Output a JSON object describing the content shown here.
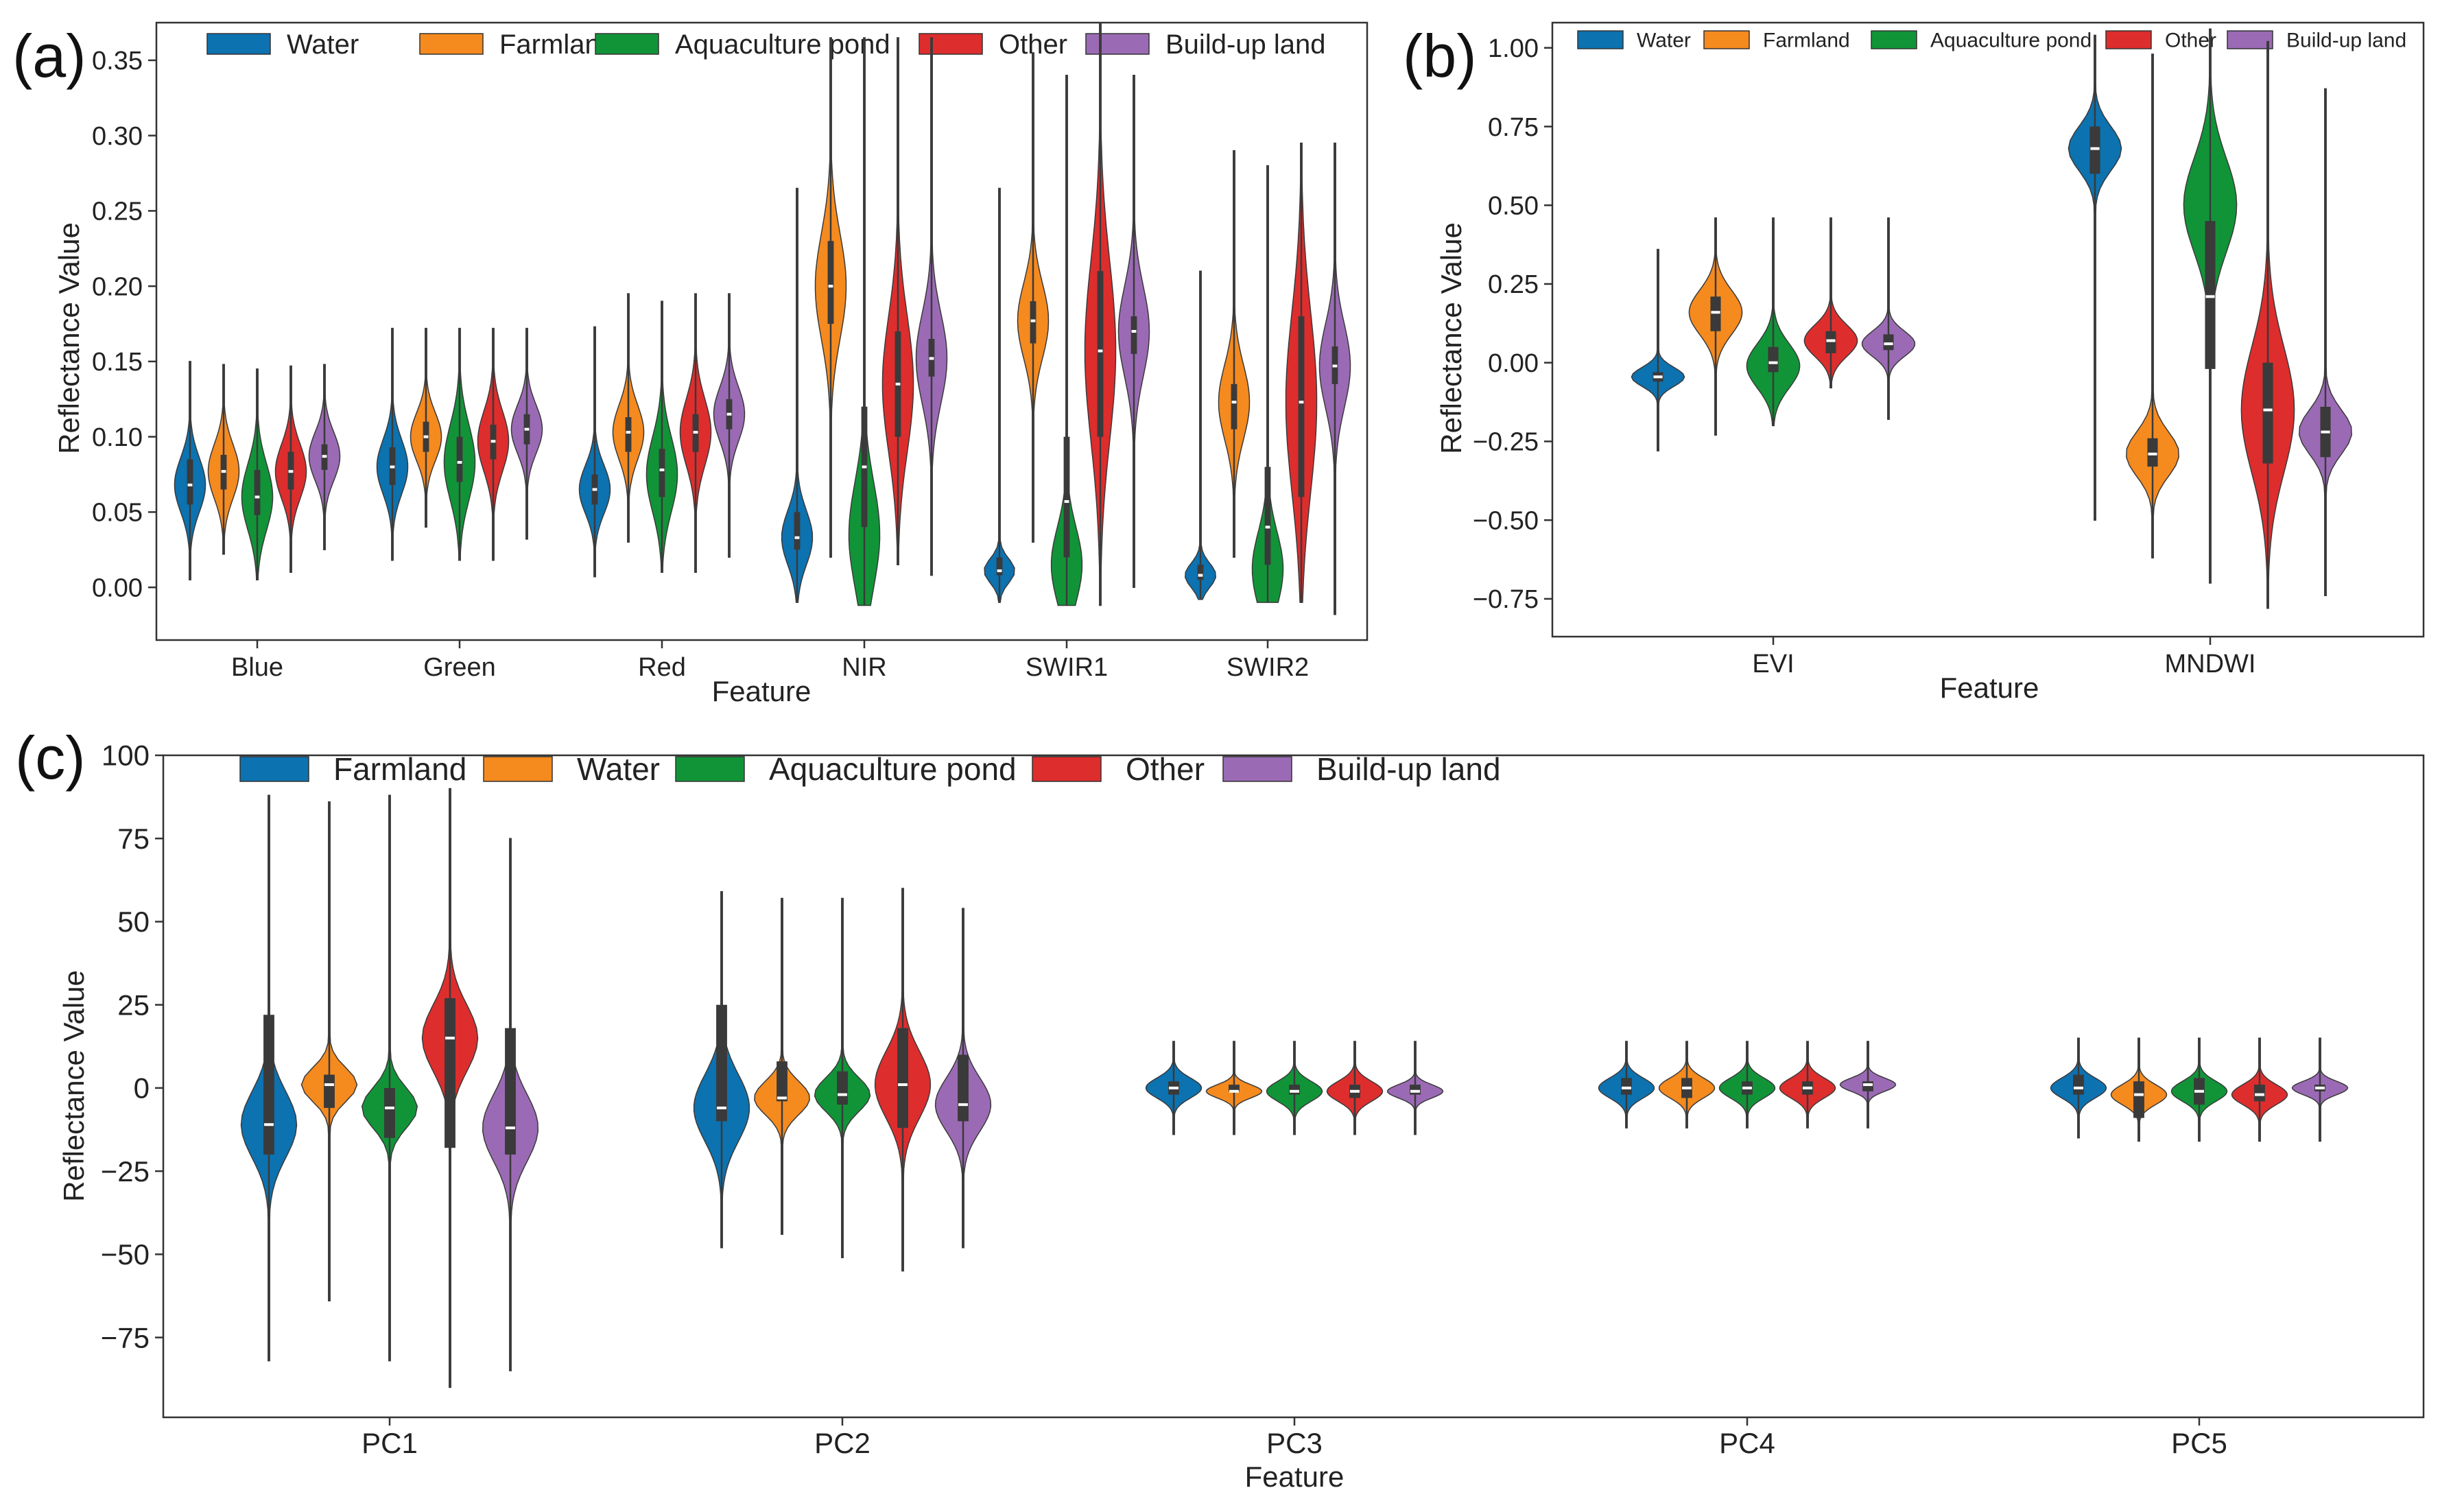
{
  "figure": {
    "panels": [
      {
        "id": "a",
        "label": "(a)"
      },
      {
        "id": "b",
        "label": "(b)"
      },
      {
        "id": "c",
        "label": "(c)"
      }
    ]
  },
  "chart_data": [
    {
      "panel": "(a)",
      "type": "violin",
      "xlabel": "Feature",
      "ylabel": "Reflectance Value",
      "ylim": [
        -0.035,
        0.375
      ],
      "yticks": [
        0.0,
        0.05,
        0.1,
        0.15,
        0.2,
        0.25,
        0.3,
        0.35
      ],
      "ytick_labels": [
        "0.00",
        "0.05",
        "0.10",
        "0.15",
        "0.20",
        "0.25",
        "0.30",
        "0.35"
      ],
      "categories": [
        "Blue",
        "Green",
        "Red",
        "NIR",
        "SWIR1",
        "SWIR2"
      ],
      "legend_position": "top",
      "series": [
        {
          "name": "Water",
          "color": "#0d72b0",
          "stats": [
            {
              "min": 0.005,
              "q1": 0.055,
              "median": 0.068,
              "q3": 0.085,
              "max": 0.15,
              "mode": 0.068,
              "spread": 0.018
            },
            {
              "min": 0.018,
              "q1": 0.068,
              "median": 0.08,
              "q3": 0.093,
              "max": 0.172,
              "mode": 0.08,
              "spread": 0.018
            },
            {
              "min": 0.007,
              "q1": 0.055,
              "median": 0.065,
              "q3": 0.075,
              "max": 0.173,
              "mode": 0.065,
              "spread": 0.016
            },
            {
              "min": -0.01,
              "q1": 0.025,
              "median": 0.033,
              "q3": 0.05,
              "max": 0.265,
              "mode": 0.033,
              "spread": 0.018
            },
            {
              "min": -0.01,
              "q1": 0.008,
              "median": 0.011,
              "q3": 0.02,
              "max": 0.265,
              "mode": 0.011,
              "spread": 0.008
            },
            {
              "min": -0.008,
              "q1": 0.005,
              "median": 0.008,
              "q3": 0.015,
              "max": 0.21,
              "mode": 0.008,
              "spread": 0.008
            }
          ]
        },
        {
          "name": "Farmland",
          "color": "#f58a1f",
          "stats": [
            {
              "min": 0.022,
              "q1": 0.065,
              "median": 0.077,
              "q3": 0.088,
              "max": 0.148,
              "mode": 0.077,
              "spread": 0.018
            },
            {
              "min": 0.04,
              "q1": 0.09,
              "median": 0.1,
              "q3": 0.11,
              "max": 0.172,
              "mode": 0.1,
              "spread": 0.016
            },
            {
              "min": 0.03,
              "q1": 0.09,
              "median": 0.103,
              "q3": 0.113,
              "max": 0.195,
              "mode": 0.103,
              "spread": 0.018
            },
            {
              "min": 0.02,
              "q1": 0.175,
              "median": 0.2,
              "q3": 0.23,
              "max": 0.365,
              "mode": 0.2,
              "spread": 0.035
            },
            {
              "min": 0.03,
              "q1": 0.162,
              "median": 0.177,
              "q3": 0.19,
              "max": 0.355,
              "mode": 0.177,
              "spread": 0.025
            },
            {
              "min": 0.02,
              "q1": 0.105,
              "median": 0.123,
              "q3": 0.135,
              "max": 0.29,
              "mode": 0.123,
              "spread": 0.025
            }
          ]
        },
        {
          "name": "Aquaculture pond",
          "color": "#119438",
          "stats": [
            {
              "min": 0.005,
              "q1": 0.048,
              "median": 0.06,
              "q3": 0.078,
              "max": 0.145,
              "mode": 0.06,
              "spread": 0.022
            },
            {
              "min": 0.018,
              "q1": 0.07,
              "median": 0.083,
              "q3": 0.1,
              "max": 0.172,
              "mode": 0.083,
              "spread": 0.025
            },
            {
              "min": 0.01,
              "q1": 0.06,
              "median": 0.078,
              "q3": 0.092,
              "max": 0.19,
              "mode": 0.075,
              "spread": 0.025
            },
            {
              "min": -0.012,
              "q1": 0.04,
              "median": 0.08,
              "q3": 0.12,
              "max": 0.365,
              "mode": 0.035,
              "spread": 0.035
            },
            {
              "min": -0.012,
              "q1": 0.02,
              "median": 0.057,
              "q3": 0.1,
              "max": 0.34,
              "mode": 0.015,
              "spread": 0.025
            },
            {
              "min": -0.01,
              "q1": 0.015,
              "median": 0.04,
              "q3": 0.08,
              "max": 0.28,
              "mode": 0.012,
              "spread": 0.025
            }
          ]
        },
        {
          "name": "Other",
          "color": "#de2d2d",
          "stats": [
            {
              "min": 0.01,
              "q1": 0.065,
              "median": 0.077,
              "q3": 0.09,
              "max": 0.147,
              "mode": 0.077,
              "spread": 0.018
            },
            {
              "min": 0.018,
              "q1": 0.085,
              "median": 0.097,
              "q3": 0.108,
              "max": 0.172,
              "mode": 0.097,
              "spread": 0.02
            },
            {
              "min": 0.01,
              "q1": 0.09,
              "median": 0.103,
              "q3": 0.115,
              "max": 0.195,
              "mode": 0.103,
              "spread": 0.022
            },
            {
              "min": 0.015,
              "q1": 0.1,
              "median": 0.135,
              "q3": 0.17,
              "max": 0.365,
              "mode": 0.135,
              "spread": 0.045
            },
            {
              "min": -0.012,
              "q1": 0.1,
              "median": 0.157,
              "q3": 0.21,
              "max": 0.375,
              "mode": 0.157,
              "spread": 0.06
            },
            {
              "min": -0.01,
              "q1": 0.06,
              "median": 0.123,
              "q3": 0.18,
              "max": 0.295,
              "mode": 0.123,
              "spread": 0.06
            }
          ]
        },
        {
          "name": "Build-up land",
          "color": "#9b6ab5",
          "stats": [
            {
              "min": 0.025,
              "q1": 0.078,
              "median": 0.087,
              "q3": 0.095,
              "max": 0.148,
              "mode": 0.087,
              "spread": 0.016
            },
            {
              "min": 0.032,
              "q1": 0.095,
              "median": 0.105,
              "q3": 0.115,
              "max": 0.172,
              "mode": 0.105,
              "spread": 0.016
            },
            {
              "min": 0.02,
              "q1": 0.105,
              "median": 0.115,
              "q3": 0.125,
              "max": 0.195,
              "mode": 0.115,
              "spread": 0.018
            },
            {
              "min": 0.008,
              "q1": 0.14,
              "median": 0.152,
              "q3": 0.165,
              "max": 0.365,
              "mode": 0.152,
              "spread": 0.03
            },
            {
              "min": 0.0,
              "q1": 0.155,
              "median": 0.17,
              "q3": 0.18,
              "max": 0.34,
              "mode": 0.17,
              "spread": 0.03
            },
            {
              "min": -0.018,
              "q1": 0.135,
              "median": 0.147,
              "q3": 0.16,
              "max": 0.295,
              "mode": 0.147,
              "spread": 0.028
            }
          ]
        }
      ]
    },
    {
      "panel": "(b)",
      "type": "violin",
      "xlabel": "Feature",
      "ylabel": "Reflectance Value",
      "ylim": [
        -0.87,
        1.08
      ],
      "yticks": [
        -0.75,
        -0.5,
        -0.25,
        0.0,
        0.25,
        0.5,
        0.75,
        1.0
      ],
      "ytick_labels": [
        "−0.75",
        "−0.50",
        "−0.25",
        "0.00",
        "0.25",
        "0.50",
        "0.75",
        "1.00"
      ],
      "categories": [
        "EVI",
        "MNDWI"
      ],
      "legend_position": "top",
      "series": [
        {
          "name": "Water",
          "color": "#0d72b0",
          "stats": [
            {
              "min": -0.28,
              "q1": -0.06,
              "median": -0.045,
              "q3": -0.03,
              "max": 0.36,
              "mode": -0.045,
              "spread": 0.03
            },
            {
              "min": -0.5,
              "q1": 0.6,
              "median": 0.68,
              "q3": 0.75,
              "max": 1.04,
              "mode": 0.68,
              "spread": 0.07
            }
          ]
        },
        {
          "name": "Farmland",
          "color": "#f58a1f",
          "stats": [
            {
              "min": -0.23,
              "q1": 0.1,
              "median": 0.16,
              "q3": 0.21,
              "max": 0.46,
              "mode": 0.16,
              "spread": 0.07
            },
            {
              "min": -0.62,
              "q1": -0.33,
              "median": -0.29,
              "q3": -0.24,
              "max": 0.98,
              "mode": -0.29,
              "spread": 0.07
            }
          ]
        },
        {
          "name": "Aquaculture pond",
          "color": "#119438",
          "stats": [
            {
              "min": -0.2,
              "q1": -0.03,
              "median": 0.0,
              "q3": 0.05,
              "max": 0.46,
              "mode": -0.01,
              "spread": 0.07
            },
            {
              "min": -0.7,
              "q1": -0.02,
              "median": 0.21,
              "q3": 0.45,
              "max": 1.06,
              "mode": 0.5,
              "spread": 0.15
            }
          ]
        },
        {
          "name": "Other",
          "color": "#de2d2d",
          "stats": [
            {
              "min": -0.08,
              "q1": 0.03,
              "median": 0.07,
              "q3": 0.1,
              "max": 0.46,
              "mode": 0.07,
              "spread": 0.05
            },
            {
              "min": -0.78,
              "q1": -0.32,
              "median": -0.15,
              "q3": 0.0,
              "max": 1.02,
              "mode": -0.15,
              "spread": 0.2
            }
          ]
        },
        {
          "name": "Build-up land",
          "color": "#9b6ab5",
          "stats": [
            {
              "min": -0.18,
              "q1": 0.04,
              "median": 0.06,
              "q3": 0.09,
              "max": 0.46,
              "mode": 0.06,
              "spread": 0.04
            },
            {
              "min": -0.74,
              "q1": -0.3,
              "median": -0.22,
              "q3": -0.14,
              "max": 0.87,
              "mode": -0.22,
              "spread": 0.07
            }
          ]
        }
      ]
    },
    {
      "panel": "(c)",
      "type": "violin",
      "xlabel": "Feature",
      "ylabel": "Reflectance Value",
      "ylim": [
        -99,
        100
      ],
      "yticks": [
        -75,
        -50,
        -25,
        0,
        25,
        50,
        75,
        100
      ],
      "ytick_labels": [
        "−75",
        "−50",
        "−25",
        "0",
        "25",
        "50",
        "75",
        "100"
      ],
      "categories": [
        "PC1",
        "PC2",
        "PC3",
        "PC4",
        "PC5"
      ],
      "legend_position": "top",
      "series": [
        {
          "name": "Farmland",
          "color": "#0d72b0",
          "stats": [
            {
              "min": -82,
              "q1": -20,
              "median": -11,
              "q3": 22,
              "max": 88,
              "mode": -11,
              "spread": 10
            },
            {
              "min": -48,
              "q1": -10,
              "median": -6,
              "q3": 25,
              "max": 59,
              "mode": -6,
              "spread": 10
            },
            {
              "min": -14,
              "q1": -2,
              "median": 0,
              "q3": 2,
              "max": 14,
              "mode": 0,
              "spread": 3
            },
            {
              "min": -12,
              "q1": -2,
              "median": 0,
              "q3": 3,
              "max": 14,
              "mode": 0,
              "spread": 3
            },
            {
              "min": -15,
              "q1": -2,
              "median": 0,
              "q3": 4,
              "max": 15,
              "mode": 0,
              "spread": 3
            }
          ]
        },
        {
          "name": "Water",
          "color": "#f58a1f",
          "stats": [
            {
              "min": -64,
              "q1": -6,
              "median": 1,
              "q3": 4,
              "max": 86,
              "mode": 1,
              "spread": 5
            },
            {
              "min": -44,
              "q1": -4,
              "median": -3,
              "q3": 8,
              "max": 57,
              "mode": -3,
              "spread": 5
            },
            {
              "min": -14,
              "q1": -1,
              "median": -1,
              "q3": 1,
              "max": 14,
              "mode": -1,
              "spread": 2
            },
            {
              "min": -12,
              "q1": -3,
              "median": 0,
              "q3": 3,
              "max": 14,
              "mode": 0,
              "spread": 3
            },
            {
              "min": -16,
              "q1": -9,
              "median": -2,
              "q3": 2,
              "max": 15,
              "mode": -2,
              "spread": 3
            }
          ]
        },
        {
          "name": "Aquaculture pond",
          "color": "#119438",
          "stats": [
            {
              "min": -82,
              "q1": -15,
              "median": -6,
              "q3": 0,
              "max": 88,
              "mode": -6,
              "spread": 6
            },
            {
              "min": -51,
              "q1": -5,
              "median": -2,
              "q3": 5,
              "max": 57,
              "mode": -2,
              "spread": 5
            },
            {
              "min": -14,
              "q1": -2,
              "median": -1,
              "q3": 1,
              "max": 14,
              "mode": -1,
              "spread": 3
            },
            {
              "min": -12,
              "q1": -2,
              "median": 0,
              "q3": 2,
              "max": 14,
              "mode": 0,
              "spread": 3
            },
            {
              "min": -16,
              "q1": -5,
              "median": -1,
              "q3": 3,
              "max": 15,
              "mode": -1,
              "spread": 3
            }
          ]
        },
        {
          "name": "Other",
          "color": "#de2d2d",
          "stats": [
            {
              "min": -90,
              "q1": -18,
              "median": 15,
              "q3": 27,
              "max": 90,
              "mode": 15,
              "spread": 10
            },
            {
              "min": -55,
              "q1": -12,
              "median": 1,
              "q3": 18,
              "max": 60,
              "mode": 1,
              "spread": 10
            },
            {
              "min": -14,
              "q1": -3,
              "median": -1,
              "q3": 1,
              "max": 14,
              "mode": -1,
              "spread": 3
            },
            {
              "min": -12,
              "q1": -2,
              "median": 0,
              "q3": 2,
              "max": 14,
              "mode": 0,
              "spread": 3
            },
            {
              "min": -16,
              "q1": -4,
              "median": -2,
              "q3": 1,
              "max": 15,
              "mode": -2,
              "spread": 3
            }
          ]
        },
        {
          "name": "Build-up land",
          "color": "#9b6ab5",
          "stats": [
            {
              "min": -85,
              "q1": -20,
              "median": -12,
              "q3": 18,
              "max": 75,
              "mode": -12,
              "spread": 10
            },
            {
              "min": -48,
              "q1": -10,
              "median": -5,
              "q3": 10,
              "max": 54,
              "mode": -5,
              "spread": 8
            },
            {
              "min": -14,
              "q1": -2,
              "median": -1,
              "q3": 1,
              "max": 14,
              "mode": -1,
              "spread": 2
            },
            {
              "min": -12,
              "q1": -1,
              "median": 1,
              "q3": 2,
              "max": 14,
              "mode": 1,
              "spread": 2
            },
            {
              "min": -16,
              "q1": -1,
              "median": 0,
              "q3": 1,
              "max": 15,
              "mode": 0,
              "spread": 2
            }
          ]
        }
      ]
    }
  ]
}
